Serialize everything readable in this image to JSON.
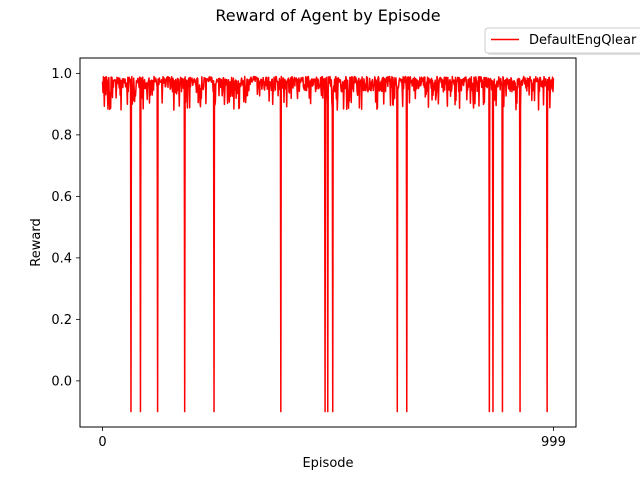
{
  "chart_data": {
    "type": "line",
    "title": "Reward of Agent by Episode",
    "xlabel": "Episode",
    "ylabel": "Reward",
    "xlim": [
      -49.95,
      1048.95
    ],
    "ylim": [
      -0.15,
      1.05
    ],
    "x_ticks": [
      0,
      999
    ],
    "y_ticks": [
      0.0,
      0.2,
      0.4,
      0.6,
      0.8,
      1.0
    ],
    "grid": false,
    "legend_position": "top-right, above axes",
    "series": [
      {
        "name": "DefaultEngQlear",
        "color": "#ff0000",
        "x_range": [
          0,
          999
        ],
        "typical_range": [
          0.9,
          0.99
        ],
        "dips": [
          {
            "x": 63,
            "y": -0.1
          },
          {
            "x": 84,
            "y": -0.1
          },
          {
            "x": 122,
            "y": -0.1
          },
          {
            "x": 182,
            "y": -0.1
          },
          {
            "x": 247,
            "y": -0.1
          },
          {
            "x": 395,
            "y": -0.1
          },
          {
            "x": 493,
            "y": -0.1
          },
          {
            "x": 499,
            "y": -0.1
          },
          {
            "x": 510,
            "y": -0.1
          },
          {
            "x": 653,
            "y": -0.1
          },
          {
            "x": 674,
            "y": -0.1
          },
          {
            "x": 857,
            "y": -0.1
          },
          {
            "x": 865,
            "y": -0.1
          },
          {
            "x": 886,
            "y": -0.1
          },
          {
            "x": 925,
            "y": -0.1
          },
          {
            "x": 985,
            "y": -0.1
          }
        ]
      }
    ]
  }
}
